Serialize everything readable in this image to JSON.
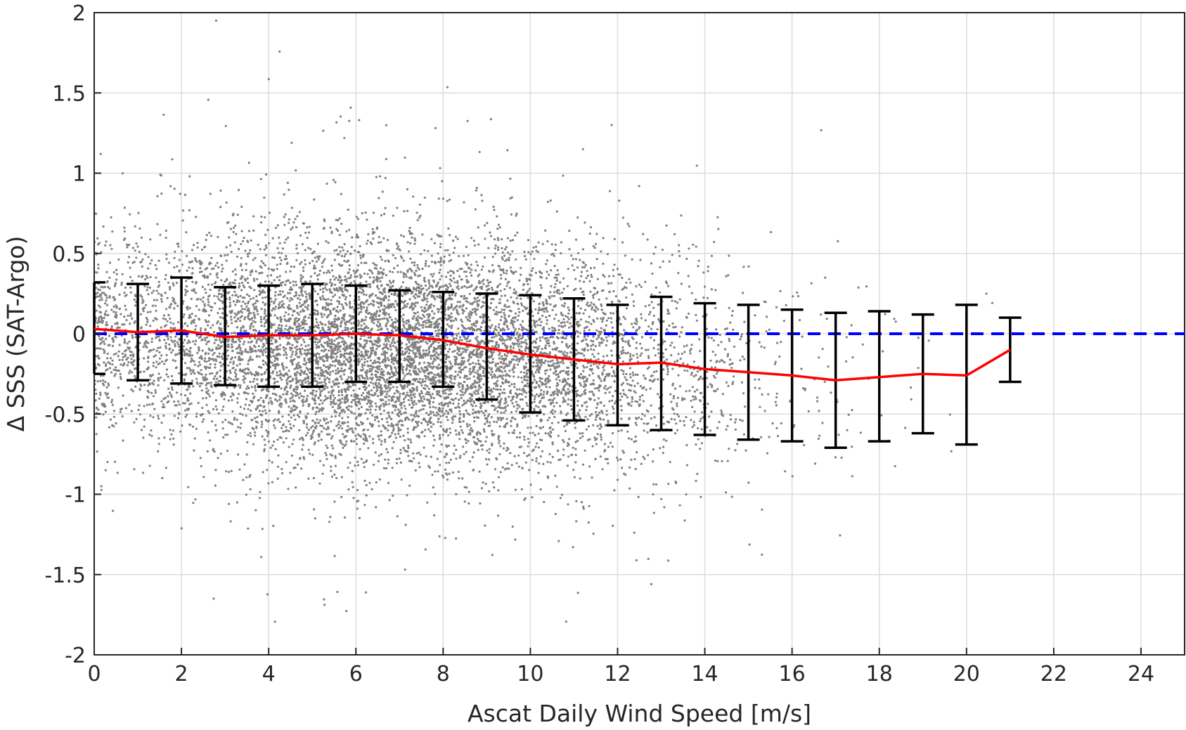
{
  "chart_data": {
    "type": "scatter",
    "xlabel": "Ascat Daily Wind Speed [m/s]",
    "ylabel": "Δ SSS (SAT-Argo)",
    "xlim": [
      0,
      25
    ],
    "ylim": [
      -2,
      2
    ],
    "xticks": [
      0,
      2,
      4,
      6,
      8,
      10,
      12,
      14,
      16,
      18,
      20,
      22,
      24
    ],
    "yticks": [
      -2,
      -1.5,
      -1,
      -0.5,
      0,
      0.5,
      1,
      1.5,
      2
    ],
    "ytick_labels": [
      "-2",
      "-1.5",
      "-1",
      "-0.5",
      "0",
      "0.5",
      "1",
      "1.5",
      "2"
    ],
    "grid": true,
    "colors": {
      "scatter": "#808080",
      "mean_line": "#ff0000",
      "zero_line": "#0000ff",
      "error_bars": "#000000",
      "grid": "#dcdcdc"
    },
    "scatter_cloud_description": {
      "center_x": 7,
      "spread_x": 3.6,
      "y_trend_slope": -0.016,
      "spread_y": 0.34,
      "x_range": [
        0,
        22
      ],
      "y_range": [
        -1.95,
        2
      ]
    },
    "mean_line": {
      "x": [
        0,
        1,
        2,
        3,
        4,
        5,
        6,
        7,
        8,
        9,
        10,
        11,
        12,
        13,
        14,
        15,
        16,
        17,
        18,
        19,
        20,
        21
      ],
      "y": [
        0.03,
        0.01,
        0.02,
        -0.02,
        -0.01,
        -0.01,
        0.0,
        -0.01,
        -0.04,
        -0.09,
        -0.13,
        -0.16,
        -0.19,
        -0.18,
        -0.22,
        -0.24,
        -0.26,
        -0.29,
        -0.27,
        -0.25,
        -0.26,
        -0.1
      ]
    },
    "error_bars": {
      "x": [
        0,
        1,
        2,
        3,
        4,
        5,
        6,
        7,
        8,
        9,
        10,
        11,
        12,
        13,
        14,
        15,
        16,
        17,
        18,
        19,
        20,
        21
      ],
      "upper": [
        0.32,
        0.31,
        0.35,
        0.29,
        0.3,
        0.31,
        0.3,
        0.27,
        0.26,
        0.25,
        0.24,
        0.22,
        0.18,
        0.23,
        0.19,
        0.18,
        0.15,
        0.13,
        0.14,
        0.12,
        0.18,
        0.1
      ],
      "lower": [
        -0.25,
        -0.29,
        -0.31,
        -0.32,
        -0.33,
        -0.33,
        -0.3,
        -0.3,
        -0.33,
        -0.41,
        -0.49,
        -0.54,
        -0.57,
        -0.6,
        -0.63,
        -0.66,
        -0.67,
        -0.71,
        -0.67,
        -0.62,
        -0.69,
        -0.3
      ]
    },
    "reference_line": {
      "y": 0,
      "style": "dashed"
    }
  }
}
